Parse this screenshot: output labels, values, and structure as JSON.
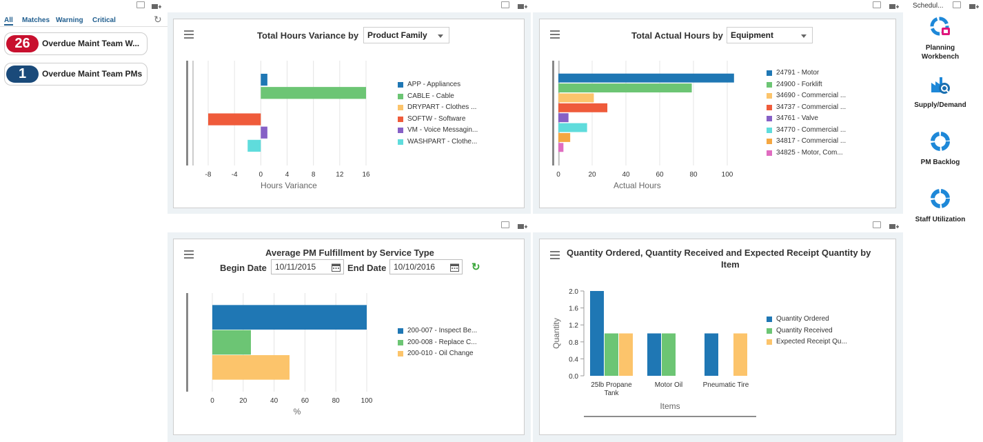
{
  "alerts": {
    "tabs": [
      "All",
      "Matches",
      "Warning",
      "Critical"
    ],
    "items": [
      {
        "count": "26",
        "label": "Overdue Maint Team W...",
        "color": "#c8102e"
      },
      {
        "count": "1",
        "label": "Overdue Maint Team PMs",
        "color": "#1a4a7a"
      }
    ]
  },
  "panel_hours_variance": {
    "title": "Total Hours Variance by",
    "select_value": "Product Family"
  },
  "panel_actual_hours": {
    "title": "Total Actual Hours by",
    "select_value": "Equipment"
  },
  "panel_pm_fulfillment": {
    "title": "Average PM Fulfillment by Service Type",
    "begin_label": "Begin Date",
    "begin_value": "10/11/2015",
    "end_label": "End Date",
    "end_value": "10/10/2016"
  },
  "panel_quantity": {
    "title_line1": "Quantity Ordered, Quantity Received and Expected Receipt Quantity by",
    "title_line2": "Item"
  },
  "launchpad": {
    "top_label": "Schedul...",
    "items": [
      {
        "label1": "Planning",
        "label2": "Workbench",
        "icon": "planning-workbench-icon"
      },
      {
        "label1": "Supply/Demand",
        "label2": "",
        "icon": "supply-demand-icon"
      },
      {
        "label1": "PM Backlog",
        "label2": "",
        "icon": "pm-backlog-icon"
      },
      {
        "label1": "Staff Utilization",
        "label2": "",
        "icon": "staff-utilization-icon"
      }
    ]
  },
  "chart_data": [
    {
      "type": "bar",
      "orientation": "horizontal",
      "title": "Total Hours Variance by Product Family",
      "xlabel": "Hours Variance",
      "xlim": [
        -10,
        16
      ],
      "xticks": [
        "-8",
        "-4",
        "0",
        "4",
        "8",
        "12",
        "16"
      ],
      "categories": [
        "APP - Appliances",
        "CABLE - Cable",
        "DRYPART - Clothes ...",
        "SOFTW - Software",
        "VM - Voice Messagin...",
        "WASHPART - Clothe..."
      ],
      "values": [
        1,
        16,
        0,
        -8,
        1,
        -2
      ],
      "colors": [
        "#1f77b4",
        "#6cc574",
        "#fcc46b",
        "#ef5b3b",
        "#8660c6",
        "#5fdcdc"
      ]
    },
    {
      "type": "bar",
      "orientation": "horizontal",
      "title": "Total Actual Hours by Equipment",
      "xlabel": "Actual Hours",
      "xlim": [
        0,
        104
      ],
      "xticks": [
        "0",
        "20",
        "40",
        "60",
        "80",
        "100"
      ],
      "categories": [
        "24791 - Motor",
        "24900 - Forklift",
        "34690 - Commercial ...",
        "34737 - Commercial ...",
        "34761 - Valve",
        "34770 - Commercial ...",
        "34817 - Commercial ...",
        "34825 - Motor, Com..."
      ],
      "values": [
        104,
        79,
        21,
        29,
        6,
        17,
        7,
        3
      ],
      "colors": [
        "#1f77b4",
        "#6cc574",
        "#fcc46b",
        "#ef5b3b",
        "#8660c6",
        "#5fdcdc",
        "#f5a742",
        "#e06cc0"
      ]
    },
    {
      "type": "bar",
      "orientation": "horizontal",
      "title": "Average PM Fulfillment by Service Type",
      "xlabel": "%",
      "xlim": [
        0,
        100
      ],
      "xticks": [
        "0",
        "20",
        "40",
        "60",
        "80",
        "100"
      ],
      "categories": [
        "200-007 - Inspect Be...",
        "200-008 - Replace C...",
        "200-010 - Oil Change"
      ],
      "values": [
        100,
        25,
        50
      ],
      "colors": [
        "#1f77b4",
        "#6cc574",
        "#fcc46b"
      ]
    },
    {
      "type": "bar",
      "title": "Quantity Ordered, Quantity Received and Expected Receipt Quantity by Item",
      "xlabel": "Items",
      "ylabel": "Quantity",
      "ylim": [
        0,
        2.0
      ],
      "yticks": [
        "0.0",
        "0.4",
        "0.8",
        "1.2",
        "1.6",
        "2.0"
      ],
      "categories": [
        "25lb Propane Tank",
        "Motor Oil",
        "Pneumatic Tire"
      ],
      "category_lines": [
        [
          "25lb Propane",
          "Tank"
        ],
        [
          "Motor Oil"
        ],
        [
          "Pneumatic Tire"
        ]
      ],
      "series": [
        {
          "name": "Quantity Ordered",
          "values": [
            2,
            1,
            1
          ],
          "color": "#1f77b4"
        },
        {
          "name": "Quantity Received",
          "values": [
            1,
            1,
            0
          ],
          "color": "#6cc574"
        },
        {
          "name": "Expected Receipt Qu...",
          "values": [
            1,
            0,
            1
          ],
          "color": "#fcc46b"
        }
      ]
    }
  ]
}
